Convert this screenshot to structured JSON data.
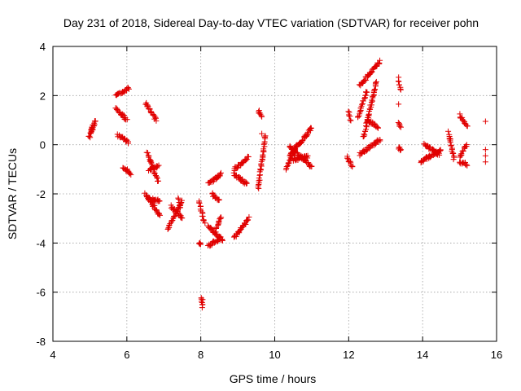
{
  "chart_data": {
    "type": "scatter",
    "title": "Day 231 of 2018, Sidereal Day-to-day VTEC variation (SDTVAR) for receiver pohn",
    "xlabel": "GPS time / hours",
    "ylabel": "SDTVAR / TECUs",
    "xlim": [
      4,
      16
    ],
    "ylim": [
      -8,
      4
    ],
    "xticks": [
      4,
      6,
      8,
      10,
      12,
      14,
      16
    ],
    "yticks": [
      -8,
      -6,
      -4,
      -2,
      0,
      2,
      4
    ],
    "grid": true,
    "marker": "plus",
    "color": "#e00000",
    "tracks": [
      {
        "x0": 4.98,
        "x1": 5.15,
        "y0": 0.3,
        "y1": 1.0
      },
      {
        "x0": 5.0,
        "x1": 5.1,
        "y0": 0.5,
        "y1": 0.9
      },
      {
        "x0": 5.7,
        "x1": 6.05,
        "y0": 2.0,
        "y1": 2.3
      },
      {
        "x0": 5.7,
        "x1": 6.0,
        "y0": 1.5,
        "y1": 1.0
      },
      {
        "x0": 5.75,
        "x1": 6.05,
        "y0": 0.4,
        "y1": 0.1
      },
      {
        "x0": 5.9,
        "x1": 6.1,
        "y0": -0.9,
        "y1": -1.2
      },
      {
        "x0": 6.5,
        "x1": 6.8,
        "y0": 1.7,
        "y1": 1.0
      },
      {
        "x0": 6.55,
        "x1": 6.85,
        "y0": -0.3,
        "y1": -1.5
      },
      {
        "x0": 6.6,
        "x1": 6.85,
        "y0": -1.0,
        "y1": -0.9
      },
      {
        "x0": 6.5,
        "x1": 6.9,
        "y0": -2.0,
        "y1": -2.9
      },
      {
        "x0": 6.6,
        "x1": 6.9,
        "y0": -2.2,
        "y1": -2.3
      },
      {
        "x0": 7.1,
        "x1": 7.5,
        "y0": -3.4,
        "y1": -2.3
      },
      {
        "x0": 7.2,
        "x1": 7.5,
        "y0": -2.5,
        "y1": -3.0
      },
      {
        "x0": 7.4,
        "x1": 7.45,
        "y0": -2.2,
        "y1": -2.6
      },
      {
        "x0": 7.95,
        "x1": 8.1,
        "y0": -2.3,
        "y1": -3.2
      },
      {
        "x0": 7.95,
        "x1": 8.0,
        "y0": -4.0,
        "y1": -4.1
      },
      {
        "x0": 8.0,
        "x1": 8.05,
        "y0": -6.2,
        "y1": -6.6
      },
      {
        "x0": 8.2,
        "x1": 8.55,
        "y0": -1.6,
        "y1": -1.2
      },
      {
        "x0": 8.3,
        "x1": 8.5,
        "y0": -2.0,
        "y1": -2.3
      },
      {
        "x0": 8.2,
        "x1": 8.6,
        "y0": -3.3,
        "y1": -3.9
      },
      {
        "x0": 8.2,
        "x1": 8.55,
        "y0": -4.1,
        "y1": -3.8
      },
      {
        "x0": 8.4,
        "x1": 8.55,
        "y0": -3.5,
        "y1": -2.9
      },
      {
        "x0": 8.9,
        "x1": 9.3,
        "y0": -3.8,
        "y1": -3.0
      },
      {
        "x0": 8.9,
        "x1": 9.3,
        "y0": -1.0,
        "y1": -0.5
      },
      {
        "x0": 8.9,
        "x1": 9.25,
        "y0": -1.2,
        "y1": -1.6
      },
      {
        "x0": 9.55,
        "x1": 9.75,
        "y0": -1.8,
        "y1": 0.4
      },
      {
        "x0": 9.55,
        "x1": 9.65,
        "y0": 1.4,
        "y1": 1.2
      },
      {
        "x0": 10.3,
        "x1": 10.6,
        "y0": -1.0,
        "y1": 0.0
      },
      {
        "x0": 10.4,
        "x1": 11.0,
        "y0": -0.5,
        "y1": 0.7
      },
      {
        "x0": 10.4,
        "x1": 11.0,
        "y0": -0.1,
        "y1": -0.9
      },
      {
        "x0": 10.5,
        "x1": 10.9,
        "y0": -0.6,
        "y1": -0.5
      },
      {
        "x0": 12.0,
        "x1": 12.05,
        "y0": 1.4,
        "y1": 1.0
      },
      {
        "x0": 11.95,
        "x1": 12.1,
        "y0": -0.5,
        "y1": -0.9
      },
      {
        "x0": 12.25,
        "x1": 12.5,
        "y0": 1.1,
        "y1": 2.2
      },
      {
        "x0": 12.3,
        "x1": 12.85,
        "y0": 2.4,
        "y1": 3.4
      },
      {
        "x0": 12.4,
        "x1": 12.75,
        "y0": 0.3,
        "y1": 2.6
      },
      {
        "x0": 12.3,
        "x1": 12.85,
        "y0": -0.4,
        "y1": 0.2
      },
      {
        "x0": 12.5,
        "x1": 12.8,
        "y0": 1.0,
        "y1": 0.7
      },
      {
        "x0": 13.35,
        "x1": 13.4,
        "y0": 2.7,
        "y1": 2.2
      },
      {
        "x0": 13.35,
        "x1": 13.4,
        "y0": 0.9,
        "y1": 0.7
      },
      {
        "x0": 13.35,
        "x1": 13.4,
        "y0": -0.1,
        "y1": -0.2
      },
      {
        "x0": 13.95,
        "x1": 14.5,
        "y0": -0.7,
        "y1": -0.2
      },
      {
        "x0": 14.05,
        "x1": 14.45,
        "y0": 0.0,
        "y1": -0.4
      },
      {
        "x0": 14.7,
        "x1": 14.85,
        "y0": 0.5,
        "y1": -0.6
      },
      {
        "x0": 15.0,
        "x1": 15.2,
        "y0": 1.2,
        "y1": 0.7
      },
      {
        "x0": 15.0,
        "x1": 15.2,
        "y0": -0.5,
        "y1": 0.0
      },
      {
        "x0": 15.0,
        "x1": 15.2,
        "y0": -0.7,
        "y1": -0.8
      }
    ],
    "isolated_points": [
      {
        "x": 15.7,
        "y": 0.95
      },
      {
        "x": 15.7,
        "y": -0.2
      },
      {
        "x": 15.7,
        "y": -0.45
      },
      {
        "x": 15.7,
        "y": -0.7
      },
      {
        "x": 13.35,
        "y": 1.65
      },
      {
        "x": 9.65,
        "y": 0.45
      },
      {
        "x": 8.05,
        "y": -6.3
      }
    ]
  }
}
